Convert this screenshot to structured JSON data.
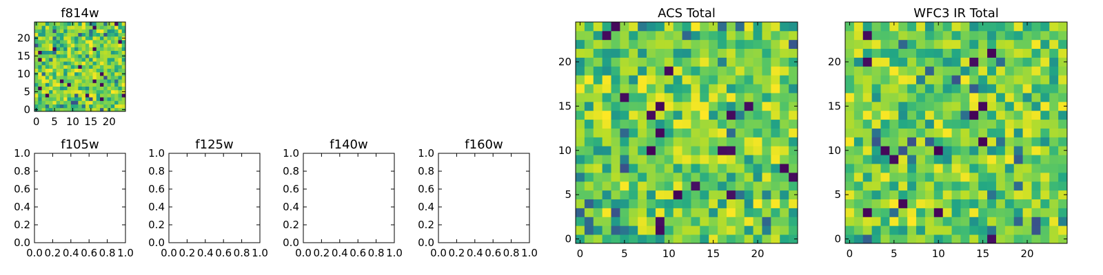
{
  "colors": {
    "colormap": "viridis",
    "background": "#ffffff",
    "axes": "#000000"
  },
  "chart_data": [
    {
      "id": "f814w",
      "type": "heatmap",
      "title": "f814w",
      "grid_size": 25,
      "seed": 11,
      "xlim": [
        -0.5,
        24.5
      ],
      "ylim": [
        -0.5,
        24.5
      ],
      "xticks": [
        0,
        5,
        10,
        15,
        20
      ],
      "yticks": [
        0,
        5,
        10,
        15,
        20
      ],
      "xticklabels": [
        "0",
        "5",
        "10",
        "15",
        "20"
      ],
      "yticklabels": [
        "0",
        "5",
        "10",
        "15",
        "20"
      ]
    },
    {
      "id": "f105w",
      "type": "empty",
      "title": "f105w",
      "xlim": [
        0,
        1
      ],
      "ylim": [
        0,
        1
      ],
      "xticks": [
        0,
        0.2,
        0.4,
        0.6,
        0.8,
        1.0
      ],
      "yticks": [
        0,
        0.2,
        0.4,
        0.6,
        0.8,
        1.0
      ],
      "xticklabels": [
        "0.0",
        "0.2",
        "0.4",
        "0.6",
        "0.8",
        "1.0"
      ],
      "yticklabels": [
        "0.0",
        "0.2",
        "0.4",
        "0.6",
        "0.8",
        "1.0"
      ]
    },
    {
      "id": "f125w",
      "type": "empty",
      "title": "f125w",
      "xlim": [
        0,
        1
      ],
      "ylim": [
        0,
        1
      ],
      "xticks": [
        0,
        0.2,
        0.4,
        0.6,
        0.8,
        1.0
      ],
      "yticks": [
        0,
        0.2,
        0.4,
        0.6,
        0.8,
        1.0
      ],
      "xticklabels": [
        "0.0",
        "0.2",
        "0.4",
        "0.6",
        "0.8",
        "1.0"
      ],
      "yticklabels": [
        "0.0",
        "0.2",
        "0.4",
        "0.6",
        "0.8",
        "1.0"
      ]
    },
    {
      "id": "f140w",
      "type": "empty",
      "title": "f140w",
      "xlim": [
        0,
        1
      ],
      "ylim": [
        0,
        1
      ],
      "xticks": [
        0,
        0.2,
        0.4,
        0.6,
        0.8,
        1.0
      ],
      "yticks": [
        0,
        0.2,
        0.4,
        0.6,
        0.8,
        1.0
      ],
      "xticklabels": [
        "0.0",
        "0.2",
        "0.4",
        "0.6",
        "0.8",
        "1.0"
      ],
      "yticklabels": [
        "0.0",
        "0.2",
        "0.4",
        "0.6",
        "0.8",
        "1.0"
      ]
    },
    {
      "id": "f160w",
      "type": "empty",
      "title": "f160w",
      "xlim": [
        0,
        1
      ],
      "ylim": [
        0,
        1
      ],
      "xticks": [
        0,
        0.2,
        0.4,
        0.6,
        0.8,
        1.0
      ],
      "yticks": [
        0,
        0.2,
        0.4,
        0.6,
        0.8,
        1.0
      ],
      "xticklabels": [
        "0.0",
        "0.2",
        "0.4",
        "0.6",
        "0.8",
        "1.0"
      ],
      "yticklabels": [
        "0.0",
        "0.2",
        "0.4",
        "0.6",
        "0.8",
        "1.0"
      ]
    },
    {
      "id": "acs-total",
      "type": "heatmap",
      "title": "ACS Total",
      "grid_size": 25,
      "seed": 23,
      "xlim": [
        -0.5,
        24.5
      ],
      "ylim": [
        -0.5,
        24.5
      ],
      "xticks": [
        0,
        5,
        10,
        15,
        20
      ],
      "yticks": [
        0,
        5,
        10,
        15,
        20
      ],
      "xticklabels": [
        "0",
        "5",
        "10",
        "15",
        "20"
      ],
      "yticklabels": [
        "0",
        "5",
        "10",
        "15",
        "20"
      ]
    },
    {
      "id": "wfc3-ir-total",
      "type": "heatmap",
      "title": "WFC3 IR Total",
      "grid_size": 25,
      "seed": 37,
      "xlim": [
        -0.5,
        24.5
      ],
      "ylim": [
        -0.5,
        24.5
      ],
      "xticks": [
        0,
        5,
        10,
        15,
        20
      ],
      "yticks": [
        0,
        5,
        10,
        15,
        20
      ],
      "xticklabels": [
        "0",
        "5",
        "10",
        "15",
        "20"
      ],
      "yticklabels": [
        "0",
        "5",
        "10",
        "15",
        "20"
      ]
    }
  ]
}
